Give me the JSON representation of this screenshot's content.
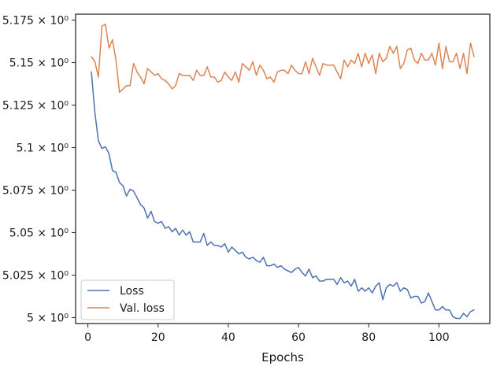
{
  "chart_data": {
    "type": "line",
    "title": "",
    "xlabel": "Epochs",
    "ylabel": "",
    "xlim": [
      -3.5,
      114.5
    ],
    "ylim": [
      4.9965,
      5.1785
    ],
    "x_ticks": [
      0,
      20,
      40,
      60,
      80,
      100
    ],
    "x_tick_labels": [
      "0",
      "20",
      "40",
      "60",
      "80",
      "100"
    ],
    "y_ticks": [
      5.0,
      5.025,
      5.05,
      5.075,
      5.1,
      5.125,
      5.15,
      5.175
    ],
    "y_tick_labels": [
      "5 × 10⁰",
      "5.025 × 10⁰",
      "5.05 × 10⁰",
      "5.075 × 10⁰",
      "5.1 × 10⁰",
      "5.125 × 10⁰",
      "5.15 × 10⁰",
      "5.175 × 10⁰"
    ],
    "grid": false,
    "legend_position": "lower-left",
    "x": [
      1,
      2,
      3,
      4,
      5,
      6,
      7,
      8,
      9,
      10,
      11,
      12,
      13,
      14,
      15,
      16,
      17,
      18,
      19,
      20,
      21,
      22,
      23,
      24,
      25,
      26,
      27,
      28,
      29,
      30,
      31,
      32,
      33,
      34,
      35,
      36,
      37,
      38,
      39,
      40,
      41,
      42,
      43,
      44,
      45,
      46,
      47,
      48,
      49,
      50,
      51,
      52,
      53,
      54,
      55,
      56,
      57,
      58,
      59,
      60,
      61,
      62,
      63,
      64,
      65,
      66,
      67,
      68,
      69,
      70,
      71,
      72,
      73,
      74,
      75,
      76,
      77,
      78,
      79,
      80,
      81,
      82,
      83,
      84,
      85,
      86,
      87,
      88,
      89,
      90,
      91,
      92,
      93,
      94,
      95,
      96,
      97,
      98,
      99,
      100,
      101,
      102,
      103,
      104,
      105,
      106,
      107,
      108,
      109,
      110
    ],
    "series": [
      {
        "name": "Loss",
        "color": "#4c72b0",
        "values": [
          5.1445,
          5.1205,
          5.104,
          5.0995,
          5.1005,
          5.0965,
          5.0865,
          5.0855,
          5.0795,
          5.0775,
          5.0715,
          5.0755,
          5.0745,
          5.0705,
          5.0665,
          5.0645,
          5.0585,
          5.0625,
          5.0565,
          5.0555,
          5.0565,
          5.0525,
          5.0535,
          5.0505,
          5.0525,
          5.0485,
          5.0515,
          5.0485,
          5.0505,
          5.0445,
          5.0445,
          5.0445,
          5.0495,
          5.0425,
          5.0445,
          5.0425,
          5.0425,
          5.0415,
          5.0435,
          5.0385,
          5.0415,
          5.0395,
          5.0375,
          5.0385,
          5.0355,
          5.0345,
          5.0355,
          5.0335,
          5.0325,
          5.0355,
          5.0305,
          5.0305,
          5.0315,
          5.0295,
          5.0305,
          5.0285,
          5.0275,
          5.0265,
          5.0285,
          5.0295,
          5.0265,
          5.0245,
          5.0285,
          5.0235,
          5.0245,
          5.0215,
          5.0215,
          5.0225,
          5.0225,
          5.0225,
          5.0195,
          5.0235,
          5.0205,
          5.0215,
          5.0185,
          5.0225,
          5.0155,
          5.0175,
          5.0155,
          5.0175,
          5.0145,
          5.0185,
          5.0205,
          5.0105,
          5.0175,
          5.0195,
          5.0185,
          5.0205,
          5.0155,
          5.0175,
          5.0165,
          5.0115,
          5.0125,
          5.0125,
          5.0085,
          5.0095,
          5.0145,
          5.0095,
          5.0045,
          5.0045,
          5.0065,
          5.0045,
          5.0045,
          5.0005,
          4.9995,
          4.9995,
          5.0025,
          5.0005,
          5.0035,
          5.0045
        ]
      },
      {
        "name": "Val. loss",
        "color": "#dd8452",
        "values": [
          5.1535,
          5.1505,
          5.1415,
          5.1715,
          5.1725,
          5.1585,
          5.1635,
          5.1515,
          5.1325,
          5.1345,
          5.1365,
          5.1365,
          5.1495,
          5.1445,
          5.1415,
          5.1375,
          5.1465,
          5.1445,
          5.1425,
          5.1435,
          5.1405,
          5.1395,
          5.1375,
          5.1345,
          5.1365,
          5.1435,
          5.1425,
          5.1425,
          5.1425,
          5.1395,
          5.1455,
          5.1425,
          5.1425,
          5.1475,
          5.1415,
          5.1415,
          5.1385,
          5.1395,
          5.1445,
          5.1415,
          5.1395,
          5.1445,
          5.1385,
          5.1495,
          5.1475,
          5.1455,
          5.1505,
          5.1425,
          5.1485,
          5.1455,
          5.1405,
          5.1415,
          5.1385,
          5.1445,
          5.1455,
          5.1455,
          5.1435,
          5.1485,
          5.1455,
          5.1435,
          5.1435,
          5.1505,
          5.1435,
          5.1525,
          5.1475,
          5.1425,
          5.1495,
          5.1485,
          5.1485,
          5.1485,
          5.1445,
          5.1405,
          5.1515,
          5.1475,
          5.1515,
          5.1495,
          5.1555,
          5.1475,
          5.1555,
          5.1495,
          5.1545,
          5.1435,
          5.1555,
          5.1505,
          5.1525,
          5.1595,
          5.1555,
          5.1595,
          5.1465,
          5.1495,
          5.1575,
          5.1585,
          5.1515,
          5.1495,
          5.1555,
          5.1515,
          5.1515,
          5.1555,
          5.1485,
          5.1615,
          5.1465,
          5.1595,
          5.1505,
          5.1505,
          5.1555,
          5.1465,
          5.1555,
          5.1435,
          5.1615,
          5.1535
        ]
      }
    ]
  }
}
